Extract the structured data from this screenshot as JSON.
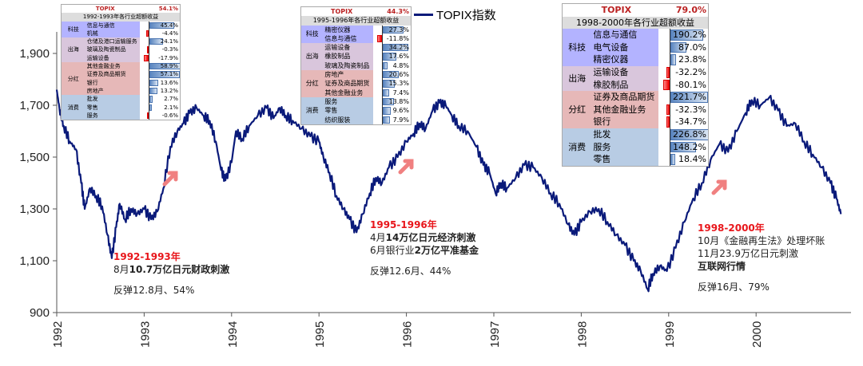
{
  "chart_data": {
    "type": "line",
    "title": "",
    "legend": "TOPIX指数",
    "legend_position": "top-center",
    "xlabel": "",
    "ylabel": "",
    "ylim": [
      900,
      2000
    ],
    "yticks": [
      "900",
      "1,100",
      "1,300",
      "1,500",
      "1,700",
      "1,900"
    ],
    "ytick_values": [
      900,
      1100,
      1300,
      1500,
      1700,
      1900
    ],
    "xticks": [
      "1992",
      "1993",
      "1994",
      "1995",
      "1996",
      "1997",
      "1998",
      "1999",
      "2000"
    ],
    "xlim": [
      1992,
      2000.97
    ],
    "color": "#0a1a7a",
    "series": [
      {
        "name": "TOPIX指数",
        "points": [
          [
            1992.0,
            1760
          ],
          [
            1992.03,
            1690
          ],
          [
            1992.08,
            1620
          ],
          [
            1992.15,
            1560
          ],
          [
            1992.22,
            1530
          ],
          [
            1992.28,
            1400
          ],
          [
            1992.32,
            1300
          ],
          [
            1992.38,
            1380
          ],
          [
            1992.45,
            1350
          ],
          [
            1992.52,
            1310
          ],
          [
            1992.58,
            1200
          ],
          [
            1992.63,
            1110
          ],
          [
            1992.68,
            1230
          ],
          [
            1992.72,
            1320
          ],
          [
            1992.78,
            1260
          ],
          [
            1992.85,
            1300
          ],
          [
            1992.92,
            1280
          ],
          [
            1993.0,
            1300
          ],
          [
            1993.08,
            1260
          ],
          [
            1993.15,
            1290
          ],
          [
            1993.22,
            1380
          ],
          [
            1993.3,
            1540
          ],
          [
            1993.38,
            1600
          ],
          [
            1993.45,
            1630
          ],
          [
            1993.52,
            1670
          ],
          [
            1993.6,
            1690
          ],
          [
            1993.68,
            1660
          ],
          [
            1993.75,
            1640
          ],
          [
            1993.82,
            1560
          ],
          [
            1993.88,
            1450
          ],
          [
            1993.93,
            1410
          ],
          [
            1994.0,
            1480
          ],
          [
            1994.05,
            1600
          ],
          [
            1994.12,
            1570
          ],
          [
            1994.2,
            1620
          ],
          [
            1994.3,
            1660
          ],
          [
            1994.4,
            1690
          ],
          [
            1994.48,
            1650
          ],
          [
            1994.55,
            1690
          ],
          [
            1994.62,
            1660
          ],
          [
            1994.7,
            1640
          ],
          [
            1994.8,
            1610
          ],
          [
            1994.9,
            1580
          ],
          [
            1995.0,
            1560
          ],
          [
            1995.05,
            1500
          ],
          [
            1995.12,
            1440
          ],
          [
            1995.2,
            1350
          ],
          [
            1995.28,
            1300
          ],
          [
            1995.35,
            1260
          ],
          [
            1995.43,
            1210
          ],
          [
            1995.5,
            1280
          ],
          [
            1995.58,
            1360
          ],
          [
            1995.65,
            1420
          ],
          [
            1995.72,
            1400
          ],
          [
            1995.8,
            1460
          ],
          [
            1995.9,
            1500
          ],
          [
            1996.0,
            1560
          ],
          [
            1996.08,
            1590
          ],
          [
            1996.15,
            1630
          ],
          [
            1996.22,
            1610
          ],
          [
            1996.3,
            1680
          ],
          [
            1996.38,
            1710
          ],
          [
            1996.45,
            1700
          ],
          [
            1996.52,
            1660
          ],
          [
            1996.6,
            1620
          ],
          [
            1996.7,
            1600
          ],
          [
            1996.8,
            1540
          ],
          [
            1996.88,
            1470
          ],
          [
            1996.95,
            1440
          ],
          [
            1997.02,
            1360
          ],
          [
            1997.08,
            1400
          ],
          [
            1997.15,
            1380
          ],
          [
            1997.25,
            1420
          ],
          [
            1997.35,
            1470
          ],
          [
            1997.45,
            1460
          ],
          [
            1997.55,
            1420
          ],
          [
            1997.65,
            1360
          ],
          [
            1997.75,
            1320
          ],
          [
            1997.85,
            1240
          ],
          [
            1997.92,
            1200
          ],
          [
            1998.0,
            1250
          ],
          [
            1998.1,
            1290
          ],
          [
            1998.2,
            1300
          ],
          [
            1998.3,
            1250
          ],
          [
            1998.4,
            1200
          ],
          [
            1998.5,
            1160
          ],
          [
            1998.6,
            1100
          ],
          [
            1998.68,
            1060
          ],
          [
            1998.76,
            990
          ],
          [
            1998.82,
            1050
          ],
          [
            1998.9,
            1080
          ],
          [
            1998.98,
            1060
          ],
          [
            1999.08,
            1150
          ],
          [
            1999.18,
            1250
          ],
          [
            1999.28,
            1340
          ],
          [
            1999.38,
            1400
          ],
          [
            1999.48,
            1490
          ],
          [
            1999.58,
            1550
          ],
          [
            1999.68,
            1520
          ],
          [
            1999.78,
            1600
          ],
          [
            1999.88,
            1670
          ],
          [
            1999.95,
            1720
          ],
          [
            2000.05,
            1700
          ],
          [
            2000.15,
            1730
          ],
          [
            2000.25,
            1680
          ],
          [
            2000.35,
            1620
          ],
          [
            2000.45,
            1630
          ],
          [
            2000.55,
            1560
          ],
          [
            2000.65,
            1510
          ],
          [
            2000.75,
            1460
          ],
          [
            2000.85,
            1400
          ],
          [
            2000.92,
            1340
          ],
          [
            2000.97,
            1280
          ]
        ]
      }
    ]
  },
  "insets": [
    {
      "topix_label": "TOPIX",
      "topix_value": "54.1%",
      "subtitle": "1992-1993年各行业超额收益",
      "max": 60,
      "groups": [
        {
          "name": "科技",
          "color": "#b3b3ff",
          "rows": [
            [
              "信息与通信",
              45.4,
              "45.4%"
            ],
            [
              "机械",
              -4.4,
              "-4.4%"
            ]
          ]
        },
        {
          "name": "出海",
          "color": "#d9c6dc",
          "rows": [
            [
              "仓储及港口运输服务",
              24.1,
              "24.1%"
            ],
            [
              "玻璃及陶瓷制品",
              -0.3,
              "-0.3%"
            ],
            [
              "运输设备",
              -17.9,
              "-17.9%"
            ]
          ]
        },
        {
          "name": "分红",
          "color": "#e6b8b8",
          "rows": [
            [
              "其他金融业务",
              58.9,
              "58.9%"
            ],
            [
              "证券及商品期货",
              57.1,
              "57.1%"
            ],
            [
              "银行",
              13.6,
              "13.6%"
            ],
            [
              "房地产",
              13.2,
              "13.2%"
            ]
          ]
        },
        {
          "name": "消费",
          "color": "#b8cce4",
          "rows": [
            [
              "批发",
              2.7,
              "2.7%"
            ],
            [
              "零售",
              2.1,
              "2.1%"
            ],
            [
              "服务",
              -0.6,
              "-0.6%"
            ]
          ]
        }
      ]
    },
    {
      "topix_label": "TOPIX",
      "topix_value": "44.3%",
      "subtitle": "1995-1996年各行业超额收益",
      "max": 40,
      "groups": [
        {
          "name": "科技",
          "color": "#b3b3ff",
          "rows": [
            [
              "精密仪器",
              27.3,
              "27.3%"
            ],
            [
              "信息与通信",
              -11.8,
              "-11.8%"
            ]
          ]
        },
        {
          "name": "出海",
          "color": "#d9c6dc",
          "rows": [
            [
              "运输设备",
              34.2,
              "34.2%"
            ],
            [
              "橡胶制品",
              17.6,
              "17.6%"
            ],
            [
              "玻璃及陶瓷制品",
              4.8,
              "4.8%"
            ]
          ]
        },
        {
          "name": "分红",
          "color": "#e6b8b8",
          "rows": [
            [
              "房地产",
              20.6,
              "20.6%"
            ],
            [
              "证券及商品期货",
              15.3,
              "15.3%"
            ],
            [
              "其他金融业务",
              7.4,
              "7.4%"
            ]
          ]
        },
        {
          "name": "消费",
          "color": "#b8cce4",
          "rows": [
            [
              "服务",
              13.8,
              "13.8%"
            ],
            [
              "零售",
              9.6,
              "9.6%"
            ],
            [
              "纺织服装",
              7.9,
              "7.9%"
            ]
          ]
        }
      ]
    },
    {
      "topix_label": "TOPIX",
      "topix_value": "79.0%",
      "subtitle": "1998-2000年各行业超额收益",
      "max": 230,
      "groups": [
        {
          "name": "科技",
          "color": "#b3b3ff",
          "rows": [
            [
              "信息与通信",
              190.2,
              "190.2%"
            ],
            [
              "电气设备",
              87.0,
              "87.0%"
            ],
            [
              "精密仪器",
              23.8,
              "23.8%"
            ]
          ]
        },
        {
          "name": "出海",
          "color": "#d9c6dc",
          "rows": [
            [
              "运输设备",
              -32.2,
              "-32.2%"
            ],
            [
              "橡胶制品",
              -80.1,
              "-80.1%"
            ]
          ]
        },
        {
          "name": "分红",
          "color": "#e6b8b8",
          "rows": [
            [
              "证券及商品期货",
              221.7,
              "221.7%"
            ],
            [
              "其他金融业务",
              -32.3,
              "-32.3%"
            ],
            [
              "银行",
              -34.7,
              "-34.7%"
            ]
          ]
        },
        {
          "name": "消费",
          "color": "#b8cce4",
          "rows": [
            [
              "批发",
              226.8,
              "226.8%"
            ],
            [
              "服务",
              148.2,
              "148.2%"
            ],
            [
              "零售",
              18.4,
              "18.4%"
            ]
          ]
        }
      ]
    }
  ],
  "annotations": [
    {
      "title": "1992-1993年",
      "line1_pre": "8月",
      "line1_bold": "10.7万亿日元财政刺激",
      "line2_pre": "",
      "line2_bold": "",
      "line3": "",
      "rebound": "反弹12.8月、54%"
    },
    {
      "title": "1995-1996年",
      "line1_pre": "4月",
      "line1_bold": "14万亿日元经济刺激",
      "line2_pre": "6月银行业",
      "line2_bold": "2万亿平准基金",
      "line3": "",
      "rebound": "反弹12.6月、44%"
    },
    {
      "title": "1998-2000年",
      "line1_pre": "10月《金融再生法》处理坏账",
      "line1_bold": "",
      "line2_pre": "11月23.9万亿日元刺激",
      "line2_bold": "",
      "line3": "互联网行情",
      "rebound": "反弹16月、79%"
    }
  ]
}
